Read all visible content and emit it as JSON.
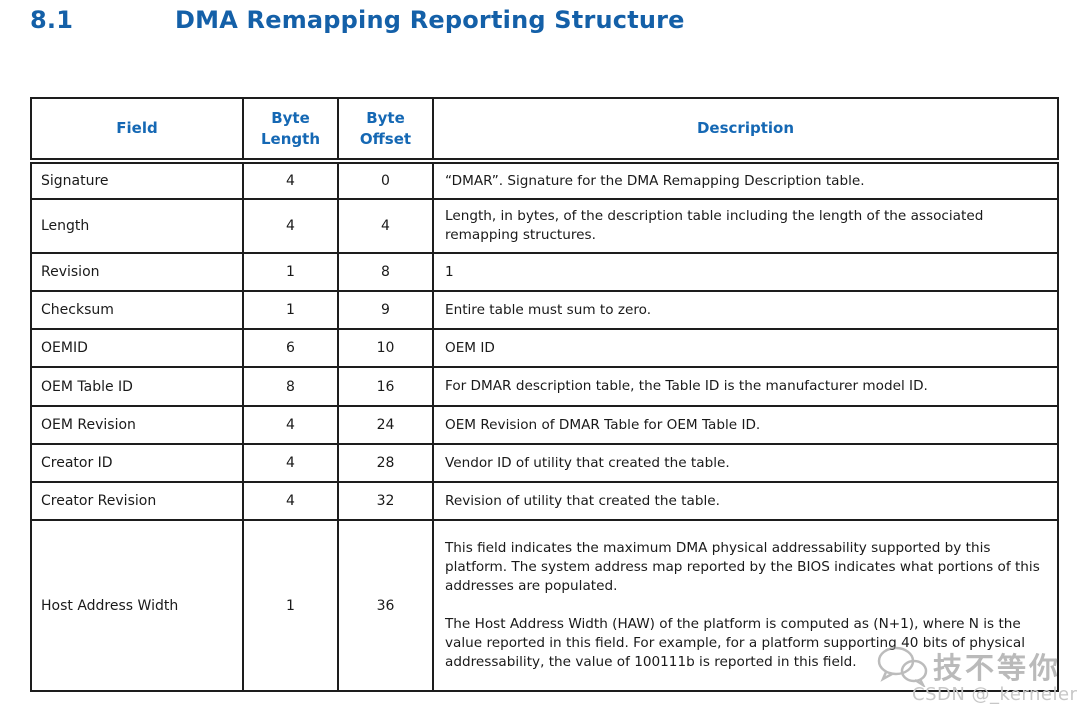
{
  "heading": {
    "number": "8.1",
    "title": "DMA Remapping Reporting Structure"
  },
  "table": {
    "headers": [
      "Field",
      "Byte Length",
      "Byte Offset",
      "Description"
    ],
    "rows": [
      {
        "field": "Signature",
        "byte_length": "4",
        "byte_offset": "0",
        "description": [
          "“DMAR”. Signature for the DMA Remapping Description table."
        ]
      },
      {
        "field": "Length",
        "byte_length": "4",
        "byte_offset": "4",
        "description": [
          "Length, in bytes, of the description table including the length of the associated remapping structures."
        ]
      },
      {
        "field": "Revision",
        "byte_length": "1",
        "byte_offset": "8",
        "description": [
          "1"
        ]
      },
      {
        "field": "Checksum",
        "byte_length": "1",
        "byte_offset": "9",
        "description": [
          "Entire table must sum to zero."
        ]
      },
      {
        "field": "OEMID",
        "byte_length": "6",
        "byte_offset": "10",
        "description": [
          "OEM ID"
        ]
      },
      {
        "field": "OEM Table ID",
        "byte_length": "8",
        "byte_offset": "16",
        "description": [
          "For DMAR description table, the Table ID is the manufacturer model ID."
        ]
      },
      {
        "field": "OEM Revision",
        "byte_length": "4",
        "byte_offset": "24",
        "description": [
          "OEM Revision of DMAR Table for OEM Table ID."
        ]
      },
      {
        "field": "Creator ID",
        "byte_length": "4",
        "byte_offset": "28",
        "description": [
          "Vendor ID of utility that created the table."
        ]
      },
      {
        "field": "Creator Revision",
        "byte_length": "4",
        "byte_offset": "32",
        "description": [
          "Revision of utility that created the table."
        ]
      },
      {
        "field": "Host Address Width",
        "byte_length": "1",
        "byte_offset": "36",
        "description": [
          "This field indicates the maximum DMA physical addressability supported by this platform. The system address map reported by the BIOS indicates what portions of this addresses are populated.",
          "The Host Address Width (HAW) of the platform is computed as (N+1), where N is the value reported in this field. For example, for a platform supporting 40 bits of physical addressability, the value of 100111b is reported in this field."
        ]
      }
    ]
  },
  "watermark": {
    "icon": "wechat-icon",
    "overlay_text": "技不等你",
    "credit_text": "CSDN @_kerneler"
  },
  "colors": {
    "accent_blue": "#1460a8",
    "header_text_blue": "#1568b4",
    "border_black": "#1d1d1d",
    "body_text": "#1a1a1a",
    "watermark_gray": "#c7c7c7"
  }
}
